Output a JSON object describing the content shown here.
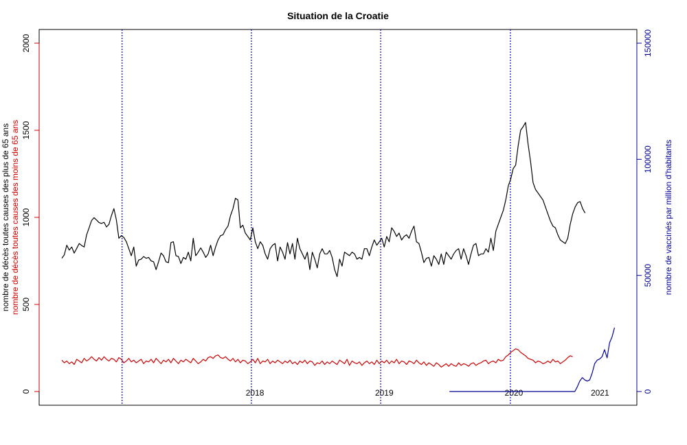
{
  "chart_data": {
    "type": "line",
    "title": "Situation de la Croatie",
    "ylabel_left": [
      "nombre de décès toutes causes des plus de 65 ans",
      "nombre de décès toutes causes des moins de 65 ans"
    ],
    "ylabel_right": "nombre de vaccinés par million d'habitants",
    "ylim_left": [
      0,
      2000
    ],
    "yticks_left": [
      "0",
      "500",
      "1000",
      "1500",
      "2000"
    ],
    "ylim_right": [
      0,
      150000
    ],
    "yticks_right": [
      "0",
      "50000",
      "100000",
      "150000"
    ],
    "x_range": [
      "2017-01-02",
      "2021-04-12"
    ],
    "year_labels": [
      {
        "label": "2018",
        "x": "2018-07-01"
      },
      {
        "label": "2019",
        "x": "2019-07-01"
      },
      {
        "label": "2020",
        "x": "2020-07-01"
      },
      {
        "label": "2021",
        "x": "2021-03-01"
      }
    ],
    "vlines": [
      "2017-06-21",
      "2018-06-21",
      "2019-06-21",
      "2020-06-21"
    ],
    "grid": false,
    "colors": {
      "over65": "#000000",
      "under65": "#cc0000",
      "vaccinated": "#000099",
      "vlines": "#0000cc",
      "left_axis_red": "#cc0000",
      "right_axis": "#000099"
    },
    "series": [
      {
        "key": "over65",
        "start": "2017-01-02",
        "step_days": 7,
        "values": [
          765,
          785,
          840,
          812,
          830,
          795,
          822,
          850,
          838,
          830,
          900,
          940,
          982,
          998,
          985,
          970,
          965,
          972,
          945,
          960,
          1010,
          1050,
          985,
          880,
          895,
          885,
          860,
          820,
          780,
          830,
          720,
          755,
          760,
          775,
          765,
          770,
          750,
          745,
          700,
          745,
          795,
          780,
          745,
          740,
          855,
          860,
          780,
          775,
          735,
          770,
          760,
          800,
          750,
          880,
          780,
          800,
          825,
          800,
          770,
          790,
          840,
          780,
          830,
          870,
          895,
          900,
          930,
          950,
          1010,
          1050,
          1110,
          1100,
          940,
          955,
          910,
          890,
          870,
          940,
          860,
          820,
          860,
          840,
          790,
          760,
          820,
          840,
          850,
          750,
          830,
          800,
          760,
          855,
          790,
          850,
          760,
          880,
          820,
          790,
          760,
          800,
          700,
          800,
          760,
          710,
          790,
          820,
          790,
          790,
          810,
          770,
          700,
          660,
          760,
          720,
          800,
          790,
          780,
          800,
          790,
          760,
          770,
          760,
          820,
          820,
          780,
          830,
          870,
          840,
          860,
          880,
          830,
          890,
          860,
          940,
          920,
          890,
          910,
          870,
          890,
          900,
          880,
          920,
          950,
          860,
          850,
          800,
          740,
          765,
          770,
          720,
          780,
          760,
          730,
          790,
          730,
          800,
          780,
          760,
          790,
          810,
          820,
          760,
          820,
          780,
          730,
          790,
          840,
          850,
          780,
          790,
          790,
          820,
          800,
          880,
          810,
          920,
          960,
          1000,
          1040,
          1100,
          1180,
          1220,
          1280,
          1300,
          1410,
          1500,
          1520,
          1545,
          1420,
          1320,
          1200,
          1160,
          1140,
          1120,
          1100,
          1060,
          1020,
          980,
          950,
          940,
          900,
          870,
          860,
          850,
          880,
          960,
          1020,
          1060,
          1085,
          1090,
          1050,
          1025
        ]
      },
      {
        "key": "under65",
        "start": "2017-01-02",
        "step_days": 7,
        "values": [
          180,
          165,
          175,
          160,
          170,
          155,
          185,
          175,
          165,
          190,
          175,
          185,
          200,
          185,
          175,
          195,
          180,
          200,
          185,
          175,
          190,
          185,
          170,
          195,
          185,
          165,
          175,
          190,
          170,
          180,
          165,
          175,
          185,
          160,
          175,
          170,
          185,
          165,
          190,
          175,
          160,
          180,
          170,
          185,
          165,
          190,
          175,
          160,
          180,
          170,
          185,
          175,
          165,
          190,
          175,
          160,
          170,
          185,
          175,
          195,
          200,
          190,
          205,
          210,
          195,
          190,
          200,
          185,
          175,
          190,
          170,
          185,
          165,
          180,
          175,
          160,
          170,
          185,
          165,
          190,
          160,
          175,
          170,
          185,
          160,
          175,
          165,
          180,
          170,
          160,
          175,
          165,
          180,
          160,
          170,
          155,
          175,
          165,
          180,
          160,
          175,
          170,
          150,
          165,
          160,
          175,
          155,
          170,
          160,
          175,
          165,
          155,
          180,
          170,
          160,
          185,
          150,
          175,
          165,
          160,
          170,
          150,
          165,
          175,
          160,
          170,
          155,
          180,
          160,
          175,
          165,
          180,
          160,
          175,
          165,
          185,
          160,
          175,
          170,
          155,
          175,
          170,
          160,
          180,
          165,
          155,
          170,
          150,
          165,
          155,
          145,
          165,
          155,
          140,
          150,
          160,
          145,
          160,
          150,
          145,
          165,
          150,
          160,
          155,
          145,
          160,
          165,
          150,
          160,
          165,
          175,
          180,
          160,
          170,
          175,
          165,
          185,
          175,
          180,
          200,
          210,
          225,
          235,
          245,
          240,
          225,
          215,
          205,
          190,
          185,
          180,
          165,
          175,
          170,
          160,
          165,
          175,
          165,
          185,
          170,
          175,
          160,
          170,
          180,
          195,
          205,
          200
        ]
      },
      {
        "key": "vaccinated",
        "axis": "right",
        "x": [
          "2020-01-01",
          "2020-12-20",
          "2020-12-27",
          "2021-01-03",
          "2021-01-10",
          "2021-01-17",
          "2021-01-24",
          "2021-01-31",
          "2021-02-07",
          "2021-02-14",
          "2021-02-21",
          "2021-02-28",
          "2021-03-07",
          "2021-03-14",
          "2021-03-21",
          "2021-03-28",
          "2021-04-04",
          "2021-04-11"
        ],
        "values": [
          0,
          0,
          2000,
          4500,
          6000,
          5000,
          4500,
          5000,
          8000,
          12000,
          13500,
          14000,
          15000,
          18000,
          14500,
          21000,
          23500,
          27500
        ]
      }
    ]
  }
}
